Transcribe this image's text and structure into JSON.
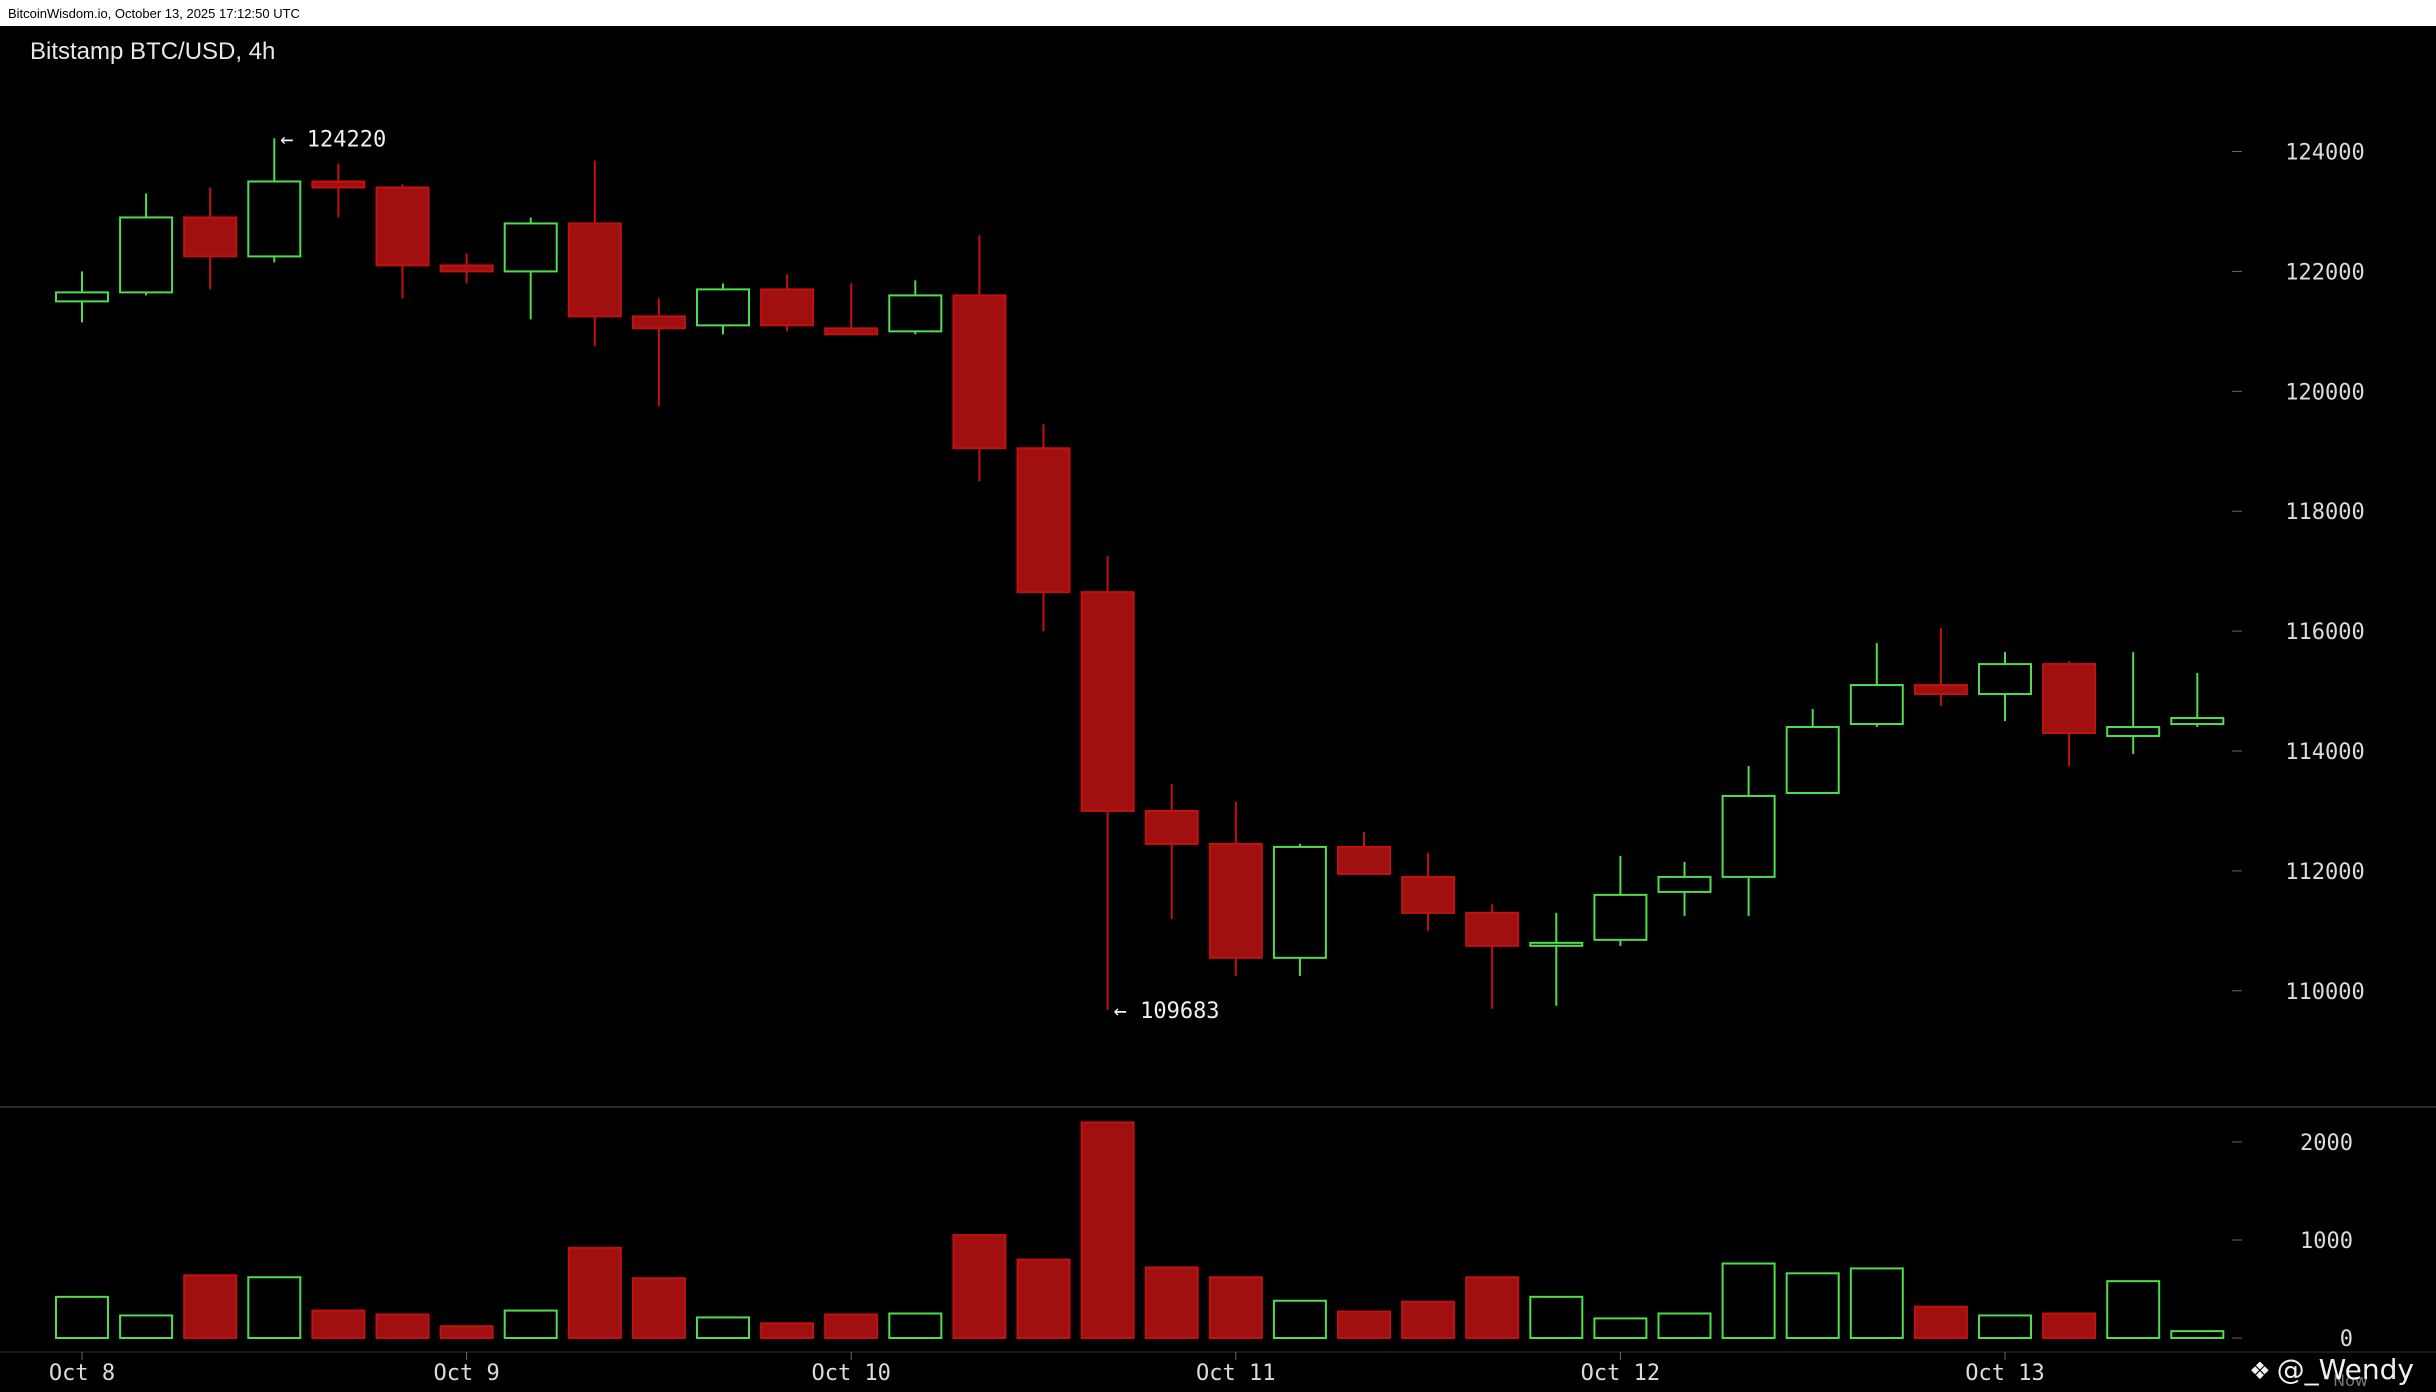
{
  "header": {
    "source": "BitcoinWisdom.io, October 13, 2025 17:12:50 UTC"
  },
  "chart_title": "Bitstamp BTC/USD, 4h",
  "watermark": {
    "icon": "crypto-logo-icon",
    "handle": "@_Wendy",
    "now_label": "Now"
  },
  "colors": {
    "background": "#000000",
    "up": "#4fdc4f",
    "down": "#c0120f",
    "down_fill": "#a01010",
    "axis_text": "#dcdcdc",
    "separator": "#555555"
  },
  "chart_data": {
    "type": "candlestick",
    "timeframe": "4h",
    "x_ticks": [
      "Oct 8",
      "Oct 9",
      "Oct 10",
      "Oct 11",
      "Oct 12",
      "Oct 13"
    ],
    "x_tick_candle_index": [
      0,
      6,
      12,
      18,
      24,
      30
    ],
    "price_axis": {
      "ticks": [
        110000,
        112000,
        114000,
        116000,
        118000,
        120000,
        122000,
        124000
      ]
    },
    "volume_axis": {
      "ticks": [
        0,
        1000,
        2000
      ]
    },
    "annotations": [
      {
        "label": "← 124220",
        "candle_index": 3,
        "value": 124220
      },
      {
        "label": "← 109683",
        "candle_index": 16,
        "value": 109683
      }
    ],
    "candles": [
      {
        "o": 121500,
        "h": 122000,
        "l": 121150,
        "c": 121650,
        "v": 420
      },
      {
        "o": 121650,
        "h": 123300,
        "l": 121600,
        "c": 122900,
        "v": 230
      },
      {
        "o": 122900,
        "h": 123400,
        "l": 121700,
        "c": 122250,
        "v": 640
      },
      {
        "o": 122250,
        "h": 124220,
        "l": 122150,
        "c": 123500,
        "v": 620
      },
      {
        "o": 123500,
        "h": 123800,
        "l": 122900,
        "c": 123400,
        "v": 280
      },
      {
        "o": 123400,
        "h": 123450,
        "l": 121550,
        "c": 122100,
        "v": 240
      },
      {
        "o": 122100,
        "h": 122300,
        "l": 121800,
        "c": 122000,
        "v": 120
      },
      {
        "o": 122000,
        "h": 122900,
        "l": 121200,
        "c": 122800,
        "v": 280
      },
      {
        "o": 122800,
        "h": 123850,
        "l": 120750,
        "c": 121250,
        "v": 920
      },
      {
        "o": 121250,
        "h": 121550,
        "l": 119750,
        "c": 121050,
        "v": 610
      },
      {
        "o": 121100,
        "h": 121800,
        "l": 120950,
        "c": 121700,
        "v": 210
      },
      {
        "o": 121700,
        "h": 121950,
        "l": 121000,
        "c": 121100,
        "v": 150
      },
      {
        "o": 121050,
        "h": 121800,
        "l": 120950,
        "c": 120950,
        "v": 240
      },
      {
        "o": 121000,
        "h": 121850,
        "l": 120950,
        "c": 121600,
        "v": 250
      },
      {
        "o": 121600,
        "h": 122600,
        "l": 118500,
        "c": 119050,
        "v": 1050
      },
      {
        "o": 119050,
        "h": 119450,
        "l": 116000,
        "c": 116650,
        "v": 800
      },
      {
        "o": 116650,
        "h": 117250,
        "l": 109683,
        "c": 113000,
        "v": 2200
      },
      {
        "o": 113000,
        "h": 113450,
        "l": 111200,
        "c": 112450,
        "v": 720
      },
      {
        "o": 112450,
        "h": 113150,
        "l": 110250,
        "c": 110550,
        "v": 620
      },
      {
        "o": 110550,
        "h": 112450,
        "l": 110250,
        "c": 112400,
        "v": 380
      },
      {
        "o": 112400,
        "h": 112650,
        "l": 111950,
        "c": 111950,
        "v": 270
      },
      {
        "o": 111900,
        "h": 112300,
        "l": 111000,
        "c": 111300,
        "v": 370
      },
      {
        "o": 111300,
        "h": 111450,
        "l": 109700,
        "c": 110750,
        "v": 620
      },
      {
        "o": 110750,
        "h": 111300,
        "l": 109750,
        "c": 110800,
        "v": 420
      },
      {
        "o": 110850,
        "h": 112250,
        "l": 110750,
        "c": 111600,
        "v": 200
      },
      {
        "o": 111650,
        "h": 112150,
        "l": 111250,
        "c": 111900,
        "v": 250
      },
      {
        "o": 111900,
        "h": 113750,
        "l": 111250,
        "c": 113250,
        "v": 760
      },
      {
        "o": 113300,
        "h": 114700,
        "l": 113300,
        "c": 114400,
        "v": 660
      },
      {
        "o": 114450,
        "h": 115800,
        "l": 114400,
        "c": 115100,
        "v": 710
      },
      {
        "o": 115100,
        "h": 116050,
        "l": 114750,
        "c": 114950,
        "v": 320
      },
      {
        "o": 114950,
        "h": 115650,
        "l": 114500,
        "c": 115450,
        "v": 230
      },
      {
        "o": 115450,
        "h": 115500,
        "l": 113750,
        "c": 114300,
        "v": 250
      },
      {
        "o": 114250,
        "h": 115650,
        "l": 113950,
        "c": 114400,
        "v": 580
      },
      {
        "o": 114450,
        "h": 115300,
        "l": 114400,
        "c": 114550,
        "v": 70
      }
    ]
  }
}
